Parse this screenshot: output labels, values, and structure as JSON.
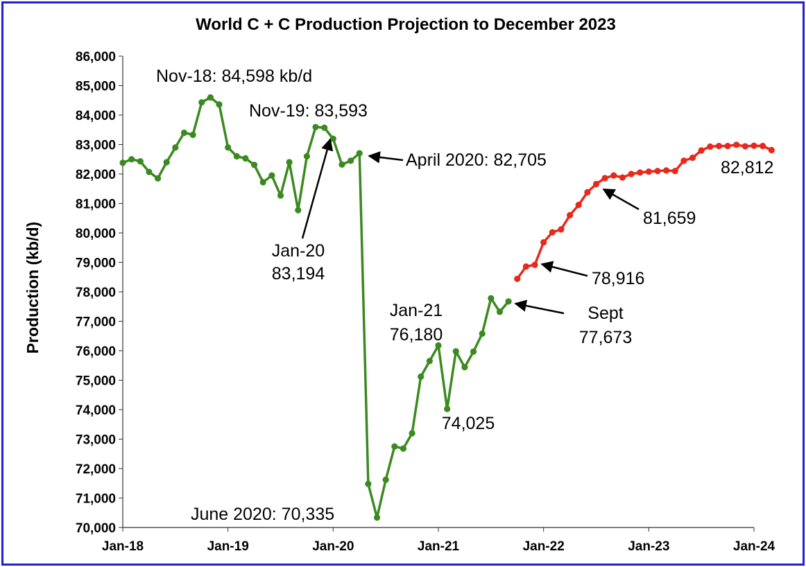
{
  "chart_data": {
    "type": "line",
    "title": "World C + C Production Projection to December 2023",
    "ylabel": "Production (kb/d)",
    "xlabel": "",
    "ylim": [
      70000,
      86000
    ],
    "yticks": [
      "70,000",
      "71,000",
      "72,000",
      "73,000",
      "74,000",
      "75,000",
      "76,000",
      "77,000",
      "78,000",
      "79,000",
      "80,000",
      "81,000",
      "82,000",
      "83,000",
      "84,000",
      "85,000",
      "86,000"
    ],
    "xticks": [
      "Jan-18",
      "Jan-19",
      "Jan-20",
      "Jan-21",
      "Jan-22",
      "Jan-23",
      "Jan-24"
    ],
    "grid": false,
    "series": [
      {
        "color": "#3a8a1f",
        "values": [
          82380,
          82500,
          82430,
          82070,
          81850,
          82400,
          82900,
          83400,
          83330,
          84430,
          84598,
          84360,
          82900,
          82600,
          82530,
          82310,
          81720,
          81950,
          81270,
          82400,
          80770,
          82600,
          83593,
          83570,
          83194,
          82320,
          82450,
          82705,
          71480,
          70335,
          71620,
          72750,
          72680,
          73200,
          75120,
          75650,
          76180,
          74025,
          75980,
          75440,
          75970,
          76580,
          77780,
          77320,
          77673
        ]
      },
      {
        "color": "#e8281a",
        "values": [
          78440,
          78860,
          78916,
          79680,
          80020,
          80120,
          80600,
          80950,
          81380,
          81659,
          81860,
          81950,
          81880,
          82000,
          82050,
          82080,
          82100,
          82120,
          82100,
          82450,
          82550,
          82800,
          82930,
          82950,
          82950,
          82990,
          82940,
          82960,
          82950,
          82812
        ]
      }
    ],
    "annotations": [
      {
        "lines": [
          "Nov-18: 84,598 kb/d"
        ]
      },
      {
        "lines": [
          "Nov-19: 83,593"
        ]
      },
      {
        "lines": [
          "Jan-20",
          "83,194"
        ]
      },
      {
        "lines": [
          "April 2020: 82,705"
        ]
      },
      {
        "lines": [
          "June 2020: 70,335"
        ]
      },
      {
        "lines": [
          "Jan-21",
          "76,180"
        ]
      },
      {
        "lines": [
          "74,025"
        ]
      },
      {
        "lines": [
          "Sept",
          "77,673"
        ]
      },
      {
        "lines": [
          "78,916"
        ]
      },
      {
        "lines": [
          "81,659"
        ]
      },
      {
        "lines": [
          "82,812"
        ]
      }
    ]
  }
}
